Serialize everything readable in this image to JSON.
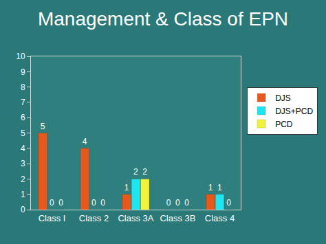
{
  "chart_data": {
    "type": "bar",
    "title": "Management & Class of EPN",
    "categories": [
      "Class I",
      "Class 2",
      "Class 3A",
      "Class 3B",
      "Class 4"
    ],
    "series": [
      {
        "name": "DJS",
        "color": "#e8581a",
        "values": [
          5,
          4,
          1,
          0,
          1
        ]
      },
      {
        "name": "DJS+PCD",
        "color": "#1ee6f0",
        "values": [
          0,
          0,
          2,
          0,
          1
        ]
      },
      {
        "name": "PCD",
        "color": "#f2f23a",
        "values": [
          0,
          0,
          2,
          0,
          0
        ]
      }
    ],
    "ylim": [
      0,
      10
    ],
    "yticks": [
      0,
      1,
      2,
      3,
      4,
      5,
      6,
      7,
      8,
      9,
      10
    ],
    "grid": false,
    "legend": "right",
    "data_labels": true
  }
}
